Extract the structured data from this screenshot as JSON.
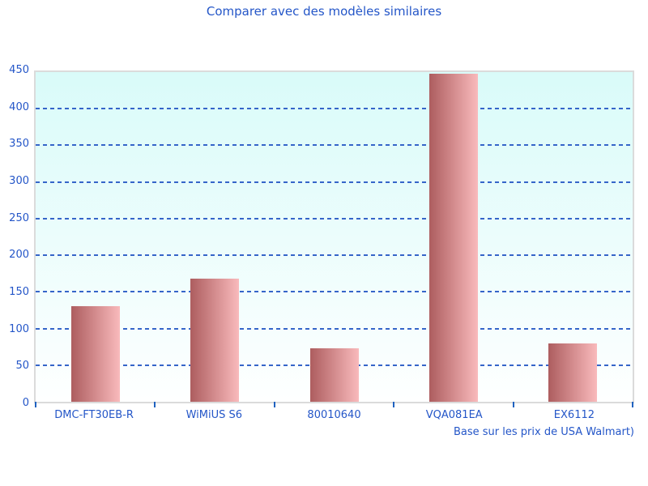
{
  "chart_data": {
    "type": "bar",
    "title": "Comparer avec des modèles similaires",
    "categories": [
      "DMC-FT30EB-R",
      "WiMiUS S6",
      "80010640",
      "VQA081EA",
      "EX6112"
    ],
    "values": [
      130,
      168,
      73,
      448,
      80
    ],
    "xlabel": "",
    "ylabel": "",
    "ylim": [
      0,
      450
    ],
    "ytick_step": 50,
    "ytick_labels": [
      "0",
      "50",
      "100",
      "150",
      "200",
      "250",
      "300",
      "350",
      "400",
      "450"
    ],
    "grid": "horizontal-dashed",
    "legend": "none",
    "footnote": "Base sur les prix de USA Walmart)",
    "colors": {
      "title_text": "#2456c8",
      "axis_text": "#2456c8",
      "gridline": "#3565c9",
      "axis_tick": "#1f62c0",
      "plot_border": "#dbdbdb",
      "plot_background_top": "#d9fbf9",
      "plot_background_bottom": "#feffff",
      "bar_gradient_left": "#ad5d5f",
      "bar_gradient_right": "#f9babc",
      "page_background": "#ffffff"
    }
  }
}
